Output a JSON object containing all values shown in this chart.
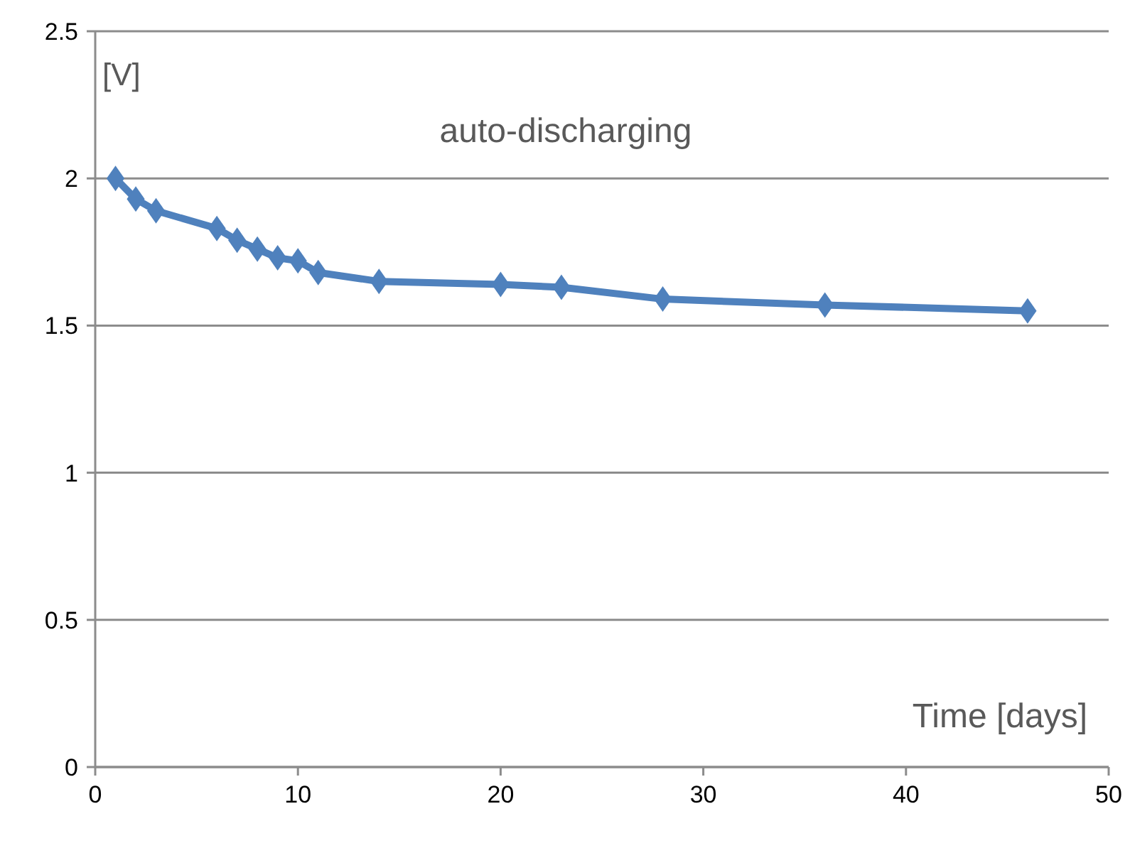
{
  "chart_data": {
    "type": "line",
    "xlabel": "Time [days]",
    "ylabel": "[V]",
    "annotations": [
      "auto-discharging"
    ],
    "x": [
      1,
      2,
      3,
      6,
      7,
      8,
      9,
      10,
      11,
      14,
      20,
      23,
      28,
      36,
      46
    ],
    "series": [
      {
        "color": "#4f81bd",
        "values": [
          2.0,
          1.93,
          1.89,
          1.83,
          1.79,
          1.76,
          1.73,
          1.72,
          1.68,
          1.65,
          1.64,
          1.63,
          1.59,
          1.57,
          1.55
        ]
      }
    ],
    "xlim": [
      0,
      50
    ],
    "ylim": [
      0,
      2.5
    ],
    "xticks": [
      0,
      10,
      20,
      30,
      40,
      50
    ],
    "yticks": [
      0,
      0.5,
      1,
      1.5,
      2,
      2.5
    ],
    "grid": "y",
    "marker": "diamond",
    "line_style": "solid"
  }
}
